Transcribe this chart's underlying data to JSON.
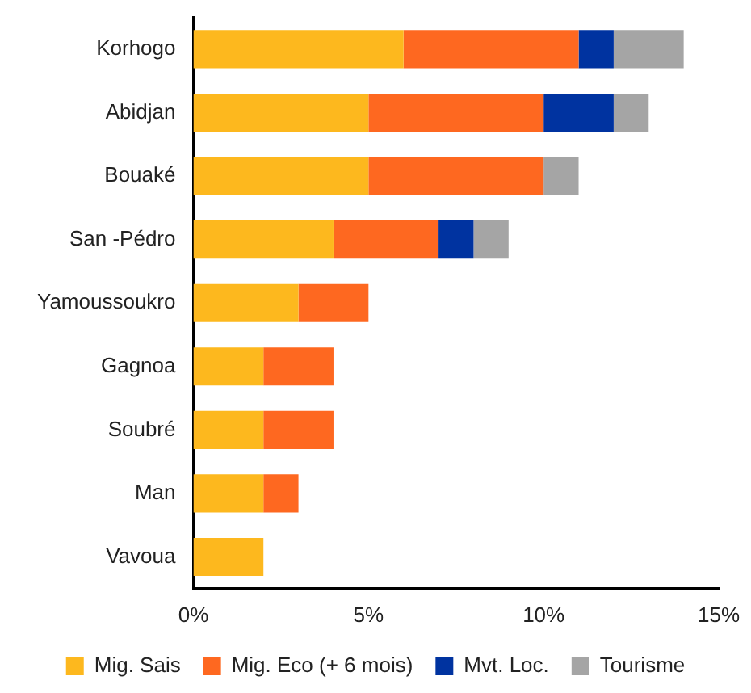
{
  "chart_data": {
    "type": "bar",
    "orientation": "horizontal",
    "stacked": true,
    "categories": [
      "Korhogo",
      "Abidjan",
      "Bouaké",
      "San -Pédro",
      "Yamoussoukro",
      "Gagnoa",
      "Soubré",
      "Man",
      "Vavoua"
    ],
    "series": [
      {
        "name": "Mig. Sais",
        "color": "#fdb81e",
        "values": [
          6,
          5,
          5,
          4,
          3,
          2,
          2,
          2,
          2
        ]
      },
      {
        "name": "Mig. Eco (+ 6 mois)",
        "color": "#fe6820",
        "values": [
          5,
          5,
          5,
          3,
          2,
          2,
          2,
          1,
          0
        ]
      },
      {
        "name": "Mvt. Loc.",
        "color": "#0033a0",
        "values": [
          1,
          2,
          0,
          1,
          0,
          0,
          0,
          0,
          0
        ]
      },
      {
        "name": "Tourisme",
        "color": "#a5a5a5",
        "values": [
          2,
          1,
          1,
          1,
          0,
          0,
          0,
          0,
          0
        ]
      }
    ],
    "xlim": [
      0,
      15
    ],
    "xticks": [
      {
        "value": 0,
        "label": "0%"
      },
      {
        "value": 5,
        "label": "5%"
      },
      {
        "value": 10,
        "label": "10%"
      },
      {
        "value": 15,
        "label": "15%"
      }
    ],
    "grid": false,
    "legend": "bottom"
  }
}
